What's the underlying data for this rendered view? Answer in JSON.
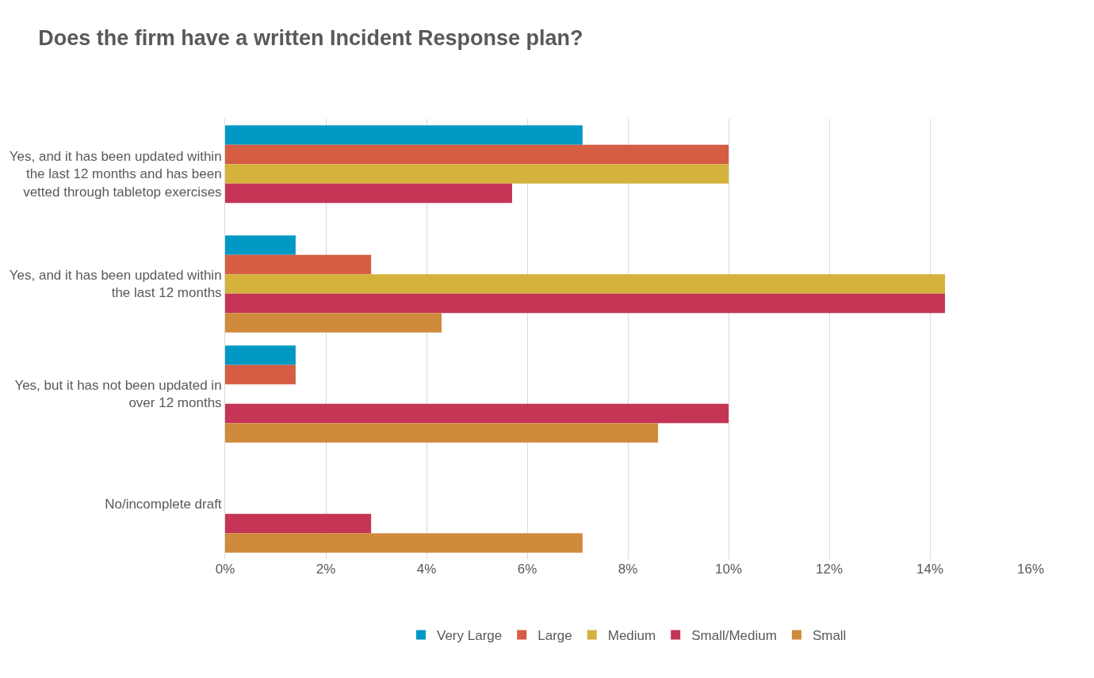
{
  "chart_data": {
    "type": "bar",
    "orientation": "horizontal",
    "title": "Does the firm have a written Incident Response plan?",
    "categories": [
      "Yes, and it has been updated within the last 12 months and has been vetted through tabletop exercises",
      "Yes, and it has been updated within the last 12 months",
      "Yes, but it has not been updated in over 12 months",
      "No/incomplete draft"
    ],
    "series": [
      {
        "name": "Very Large",
        "color": "#0099c6",
        "values": [
          7.1,
          1.4,
          1.4,
          0
        ]
      },
      {
        "name": "Large",
        "color": "#d45d44",
        "values": [
          10.0,
          2.9,
          1.4,
          0
        ]
      },
      {
        "name": "Medium",
        "color": "#d4b23c",
        "values": [
          10.0,
          14.3,
          0,
          0
        ]
      },
      {
        "name": "Small/Medium",
        "color": "#c43556",
        "values": [
          5.7,
          14.3,
          10.0,
          2.9
        ]
      },
      {
        "name": "Small",
        "color": "#d08a3c",
        "values": [
          0,
          4.3,
          8.6,
          7.1
        ]
      }
    ],
    "xlim": [
      0,
      16
    ],
    "xticks": [
      {
        "value": 0,
        "label": "0%"
      },
      {
        "value": 2,
        "label": "2%"
      },
      {
        "value": 4,
        "label": "4%"
      },
      {
        "value": 6,
        "label": "6%"
      },
      {
        "value": 8,
        "label": "8%"
      },
      {
        "value": 10,
        "label": "10%"
      },
      {
        "value": 12,
        "label": "12%"
      },
      {
        "value": 14,
        "label": "14%"
      },
      {
        "value": 16,
        "label": "16%"
      }
    ],
    "grid": "x",
    "legend": "bottom"
  }
}
